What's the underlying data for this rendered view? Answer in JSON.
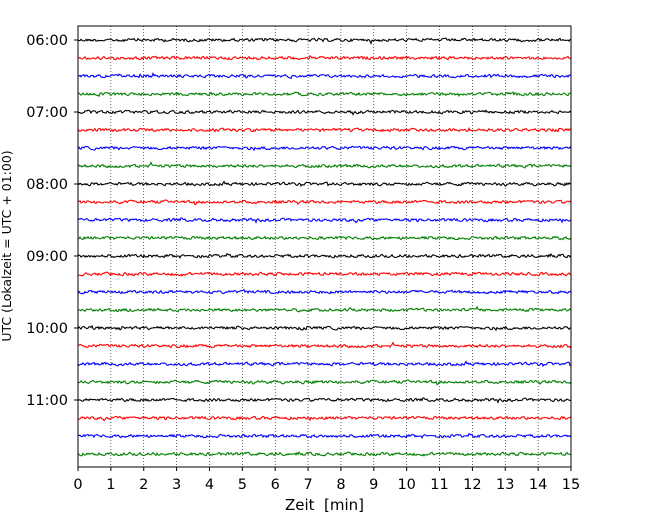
{
  "chart_data": {
    "type": "line",
    "title": "",
    "xlabel": "Zeit  [min]",
    "ylabel": "UTC (Lokalzeit = UTC + 01:00)",
    "xlim": [
      0,
      15
    ],
    "x_ticks": [
      0,
      1,
      2,
      3,
      4,
      5,
      6,
      7,
      8,
      9,
      10,
      11,
      12,
      13,
      14,
      15
    ],
    "y_tick_labels": [
      "06:00",
      "07:00",
      "08:00",
      "09:00",
      "10:00",
      "11:00"
    ],
    "trace_interval_minutes": 15,
    "color_cycle": [
      "#000000",
      "#ff0000",
      "#0000ff",
      "#008000"
    ],
    "trace_start_times": [
      "06:00",
      "06:15",
      "06:30",
      "06:45",
      "07:00",
      "07:15",
      "07:30",
      "07:45",
      "08:00",
      "08:15",
      "08:30",
      "08:45",
      "09:00",
      "09:15",
      "09:30",
      "09:45",
      "10:00",
      "10:15",
      "10:30",
      "10:45",
      "11:00",
      "11:15",
      "11:30",
      "11:45"
    ],
    "grid": "vertical dotted at every minute",
    "legend": "none"
  }
}
